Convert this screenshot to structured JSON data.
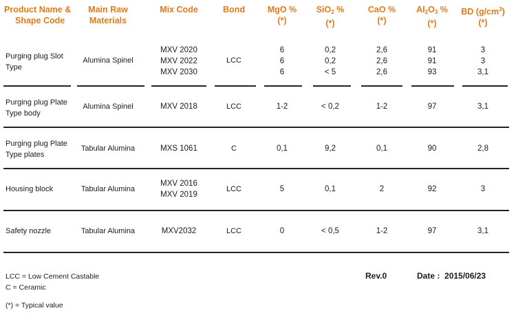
{
  "headers": {
    "product": [
      "Product Name &",
      "Shape Code"
    ],
    "raw": [
      "Main Raw",
      "Materials"
    ],
    "mix": "Mix Code",
    "bond": "Bond",
    "mgo": [
      "MgO %",
      "(*)"
    ],
    "sio2": {
      "base": "SiO",
      "sub": "2",
      "tail": " %",
      "note": "(*)"
    },
    "cao": [
      "CaO %",
      "(*)"
    ],
    "al2o3": {
      "base": "Al",
      "sub1": "2",
      "mid": "O",
      "sub2": "3",
      "tail": " %",
      "note": "(*)"
    },
    "bd": {
      "base": "BD (g/cm",
      "sup": "3",
      "tail": ")",
      "note": "(*)"
    }
  },
  "rows": [
    {
      "name": [
        "Purging plug Slot",
        "Type"
      ],
      "raw": "Alumina Spinel",
      "mix": [
        "MXV 2020",
        "MXV 2022",
        "MXV 2030"
      ],
      "bond": "LCC",
      "mgo": [
        "6",
        "6",
        "6"
      ],
      "sio2": [
        "0,2",
        "0,2",
        "< 5"
      ],
      "cao": [
        "2,6",
        "2,6",
        "2,6"
      ],
      "al2o3": [
        "91",
        "91",
        "93"
      ],
      "bd": [
        "3",
        "3",
        "3,1"
      ]
    },
    {
      "name": [
        "Purging plug Plate",
        "Type body"
      ],
      "raw": "Alumina Spinel",
      "mix": [
        "MXV 2018"
      ],
      "bond": "LCC",
      "mgo": [
        "1-2"
      ],
      "sio2": [
        "< 0,2"
      ],
      "cao": [
        "1-2"
      ],
      "al2o3": [
        "97"
      ],
      "bd": [
        "3,1"
      ]
    },
    {
      "name": [
        "Purging plug Plate",
        "Type plates"
      ],
      "raw": "Tabular Alumina",
      "mix": [
        "MXS 1061"
      ],
      "bond": "C",
      "mgo": [
        "0,1"
      ],
      "sio2": [
        "9,2"
      ],
      "cao": [
        "0,1"
      ],
      "al2o3": [
        "90"
      ],
      "bd": [
        "2,8"
      ]
    },
    {
      "name": [
        "Housing block"
      ],
      "raw": "Tabular Alumina",
      "mix": [
        "MXV 2016",
        "MXV 2019"
      ],
      "bond": "LCC",
      "mgo": [
        "5"
      ],
      "sio2": [
        "0,1"
      ],
      "cao": [
        "2"
      ],
      "al2o3": [
        "92"
      ],
      "bd": [
        "3"
      ]
    },
    {
      "name": [
        "Safety nozzle"
      ],
      "raw": "Tabular Alumina",
      "mix": [
        "MXV2032"
      ],
      "bond": "LCC",
      "mgo": [
        "0"
      ],
      "sio2": [
        "< 0,5"
      ],
      "cao": [
        "1-2"
      ],
      "al2o3": [
        "97"
      ],
      "bd": [
        "3,1"
      ]
    }
  ],
  "footer": {
    "legend1": "LCC = Low Cement Castable",
    "legend2": "C = Ceramic",
    "legend3": "(*) = Typical value",
    "rev": "Rev.0",
    "date_label": "Date :",
    "date_value": "2015/06/23"
  }
}
